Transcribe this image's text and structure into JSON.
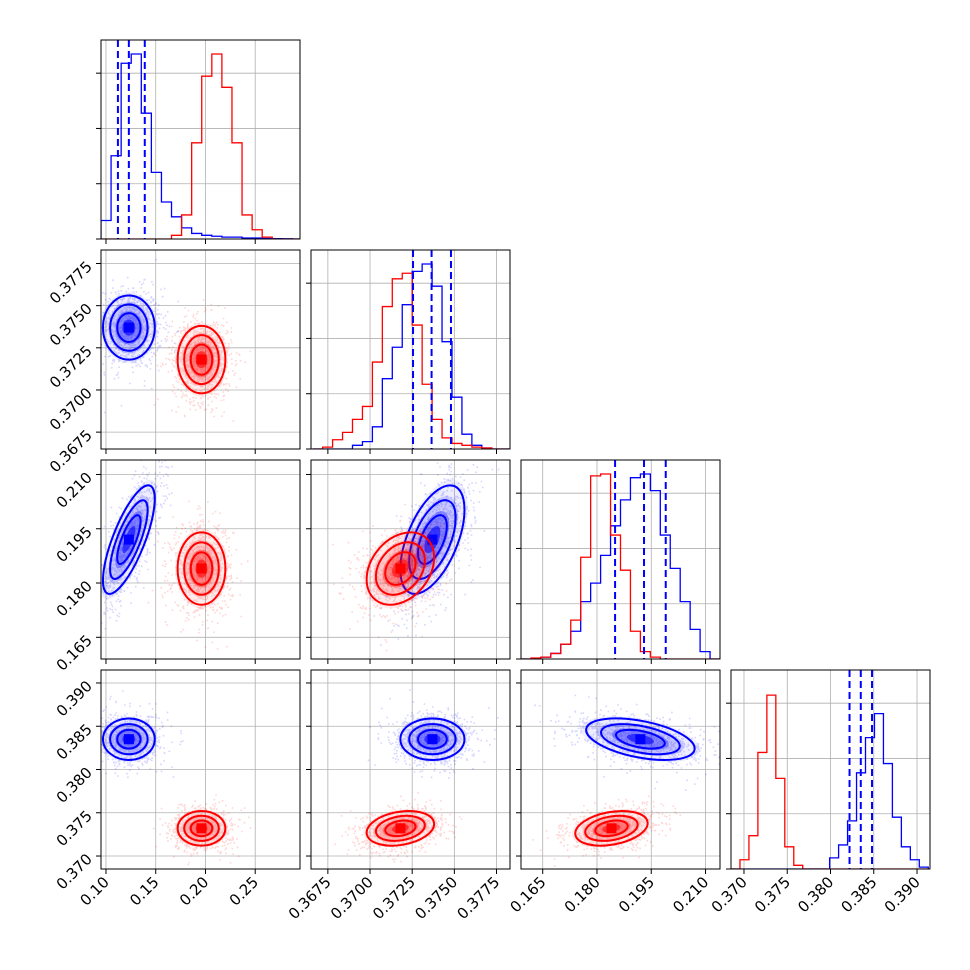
{
  "chart_data": {
    "type": "corner",
    "parameters": [
      "p0",
      "p1",
      "p2",
      "p3"
    ],
    "colors": {
      "blue": "#0000ff",
      "red": "#ff0000"
    },
    "grid": true,
    "quantile_lines": {
      "color": "#0000ff",
      "style": "dashed",
      "series": "blue"
    },
    "ranges": [
      [
        0.095,
        0.295
      ],
      [
        0.3665,
        0.3783
      ],
      [
        0.159,
        0.214
      ],
      [
        0.3685,
        0.3915
      ]
    ],
    "ticks": [
      {
        "values": [
          0.1,
          0.15,
          0.2,
          0.25
        ],
        "labels": [
          "0.10",
          "0.15",
          "0.20",
          "0.25"
        ]
      },
      {
        "values": [
          0.3675,
          0.37,
          0.3725,
          0.375,
          0.3775
        ],
        "labels": [
          "0.3675",
          "0.3700",
          "0.3725",
          "0.3750",
          "0.3775"
        ]
      },
      {
        "values": [
          0.165,
          0.18,
          0.195,
          0.21
        ],
        "labels": [
          "0.165",
          "0.180",
          "0.195",
          "0.210"
        ]
      },
      {
        "values": [
          0.37,
          0.375,
          0.38,
          0.385,
          0.39
        ],
        "labels": [
          "0.370",
          "0.375",
          "0.380",
          "0.385",
          "0.390"
        ]
      }
    ],
    "quantiles": [
      [
        0.112,
        0.123,
        0.139
      ],
      [
        0.37255,
        0.37365,
        0.3748
      ],
      [
        0.185,
        0.193,
        0.199
      ],
      [
        0.3822,
        0.3835,
        0.3848
      ]
    ],
    "series": [
      {
        "color": "blue",
        "means": [
          0.123,
          0.3737,
          0.192,
          0.3835
        ],
        "sds": [
          0.013,
          0.00095,
          0.0075,
          0.0012
        ],
        "corr": [
          [
            1,
            0,
            0.75,
            0
          ],
          [
            0,
            1,
            0.55,
            0
          ],
          [
            0.75,
            0.55,
            1,
            -0.45
          ],
          [
            0,
            0,
            -0.45,
            1
          ]
        ],
        "histograms": [
          {
            "edges": [
              0.095,
              0.2975
            ],
            "counts": [
              0.1,
              0.45,
              0.95,
              1.0,
              0.68,
              0.36,
              0.2,
              0.12,
              0.06,
              0.03,
              0.02,
              0.015,
              0.01,
              0.01,
              0.005,
              0.005,
              0.003,
              0.002,
              0.001,
              0.0
            ]
          },
          {
            "edges": [
              0.3666,
              0.3784
            ],
            "counts": [
              0.0,
              0.0,
              0.0,
              0.0,
              0.02,
              0.04,
              0.12,
              0.38,
              0.55,
              0.78,
              0.96,
              1.0,
              0.88,
              0.58,
              0.28,
              0.08,
              0.02,
              0.005,
              0.0,
              0.0
            ]
          },
          {
            "edges": [
              0.159,
              0.214
            ],
            "counts": [
              0.0,
              0.0,
              0.01,
              0.03,
              0.08,
              0.15,
              0.31,
              0.41,
              0.56,
              0.72,
              0.86,
              0.98,
              1.0,
              0.91,
              0.67,
              0.49,
              0.31,
              0.16,
              0.04,
              0.0
            ]
          },
          {
            "edges": [
              0.3685,
              0.3913
            ],
            "counts": [
              0.0,
              0.0,
              0.0,
              0.0,
              0.0,
              0.0,
              0.0,
              0.0,
              0.0,
              0.0,
              0.0,
              0.06,
              0.13,
              0.26,
              0.52,
              0.71,
              0.84,
              0.57,
              0.28,
              0.12,
              0.05,
              0.01
            ]
          }
        ]
      },
      {
        "color": "red",
        "means": [
          0.196,
          0.3718,
          0.184,
          0.3732
        ],
        "sds": [
          0.012,
          0.001,
          0.005,
          0.001
        ],
        "corr": [
          [
            1,
            0,
            0,
            0
          ],
          [
            0,
            1,
            0.3,
            0.25
          ],
          [
            0,
            0.3,
            1,
            0.3
          ],
          [
            0,
            0.25,
            0.3,
            1
          ]
        ],
        "histograms": [
          {
            "edges": [
              0.095,
              0.2975
            ],
            "counts": [
              0.0,
              0.0,
              0.0,
              0.0,
              0.0,
              0.0,
              0.0,
              0.02,
              0.13,
              0.52,
              0.88,
              1.0,
              0.82,
              0.52,
              0.13,
              0.05,
              0.01,
              0.0,
              0.0,
              0.0
            ]
          },
          {
            "edges": [
              0.3666,
              0.3784
            ],
            "counts": [
              0.0,
              0.01,
              0.05,
              0.09,
              0.16,
              0.23,
              0.47,
              0.77,
              0.92,
              0.95,
              0.67,
              0.35,
              0.16,
              0.06,
              0.03,
              0.02,
              0.01,
              0.005,
              0.0,
              0.0
            ]
          },
          {
            "edges": [
              0.159,
              0.214
            ],
            "counts": [
              0.0,
              0.005,
              0.01,
              0.03,
              0.08,
              0.21,
              0.55,
              0.99,
              1.0,
              0.67,
              0.48,
              0.15,
              0.04,
              0.01,
              0.0,
              0.0,
              0.0,
              0.0,
              0.0,
              0.0
            ]
          },
          {
            "edges": [
              0.3685,
              0.3913
            ],
            "counts": [
              0.0,
              0.05,
              0.18,
              0.63,
              0.94,
              0.49,
              0.12,
              0.02,
              0.0,
              0.0,
              0.0,
              0.0,
              0.0,
              0.0,
              0.0,
              0.0,
              0.0,
              0.0,
              0.0,
              0.0,
              0.0,
              0.0
            ]
          }
        ]
      }
    ]
  }
}
